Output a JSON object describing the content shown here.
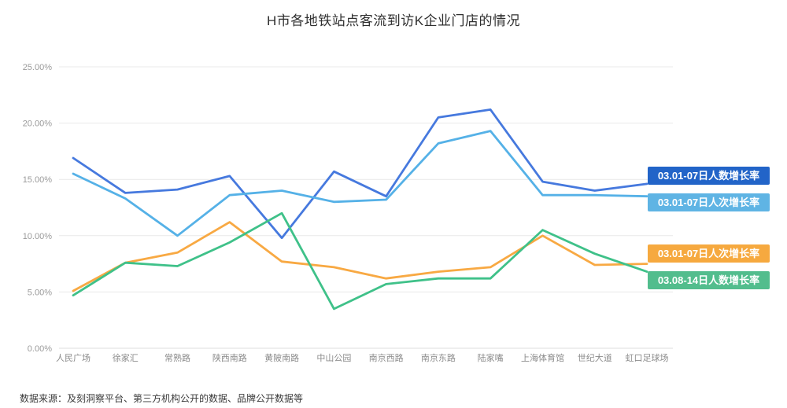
{
  "title": "H市各地铁站点客流到访K企业门店的情况",
  "source_note": "数据来源：及刻洞察平台、第三方机构公开的数据、品牌公开数据等",
  "chart_data": {
    "type": "line",
    "title": "H市各地铁站点客流到访K企业门店的情况",
    "categories": [
      "人民广场",
      "徐家汇",
      "常熟路",
      "陕西南路",
      "黄陂南路",
      "中山公园",
      "南京西路",
      "南京东路",
      "陆家嘴",
      "上海体育馆",
      "世纪大道",
      "虹口足球场"
    ],
    "series": [
      {
        "name": "03.01-07日人数增长率",
        "color": "#4679de",
        "label_bg": "#2264c8",
        "values": [
          16.9,
          13.8,
          14.1,
          15.3,
          9.8,
          15.7,
          13.5,
          20.5,
          21.2,
          14.8,
          14.0,
          14.6
        ]
      },
      {
        "name": "03.01-07日人次增长率",
        "color": "#55b1e7",
        "label_bg": "#5fb4e4",
        "values": [
          15.5,
          13.3,
          10.0,
          13.6,
          14.0,
          13.0,
          13.2,
          18.2,
          19.3,
          13.6,
          13.6,
          13.5
        ]
      },
      {
        "name": "03.01-07日人次增长率",
        "color": "#f8a943",
        "label_bg": "#f6a93f",
        "values": [
          5.1,
          7.6,
          8.5,
          11.2,
          7.7,
          7.2,
          6.2,
          6.8,
          7.2,
          10.0,
          7.4,
          7.5
        ]
      },
      {
        "name": "03.08-14日人数增长率",
        "color": "#3fc189",
        "label_bg": "#52bd8d",
        "values": [
          4.7,
          7.6,
          7.3,
          9.4,
          12.0,
          3.5,
          5.7,
          6.2,
          6.2,
          10.5,
          8.4,
          6.8
        ]
      }
    ],
    "ylim": [
      0,
      25
    ],
    "yticks": [
      "0.00%",
      "5.00%",
      "10.00%",
      "15.00%",
      "20.00%",
      "25.00%"
    ],
    "xlabel": "",
    "ylabel": "",
    "grid": true,
    "legend_position": "right-end-labels"
  }
}
